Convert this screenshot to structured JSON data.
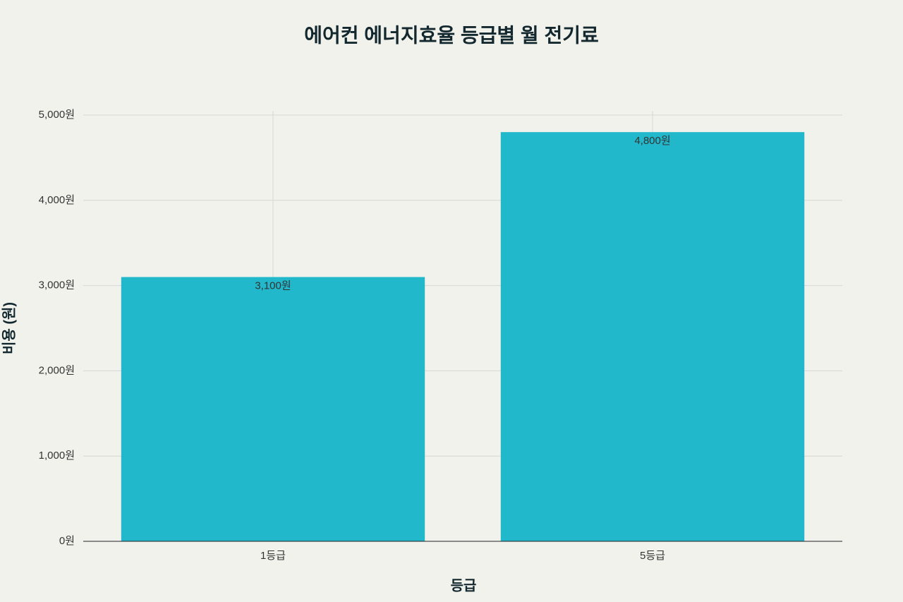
{
  "chart_data": {
    "type": "bar",
    "title": "에어컨 에너지효율 등급별 월 전기료",
    "x_label": "등급",
    "y_label": "비용 (원)",
    "categories": [
      "1등급",
      "5등급"
    ],
    "values": [
      3100,
      4800
    ],
    "value_labels": [
      "3,100원",
      "4,800원"
    ],
    "color": "#21b8cc",
    "ylim": [
      0,
      5050
    ],
    "yticks": [
      {
        "value": 0,
        "label": "0원"
      },
      {
        "value": 1000,
        "label": "1,000원"
      },
      {
        "value": 2000,
        "label": "2,000원"
      },
      {
        "value": 3000,
        "label": "3,000원"
      },
      {
        "value": 4000,
        "label": "4,000원"
      },
      {
        "value": 5000,
        "label": "5,000원"
      }
    ],
    "grid": true
  }
}
